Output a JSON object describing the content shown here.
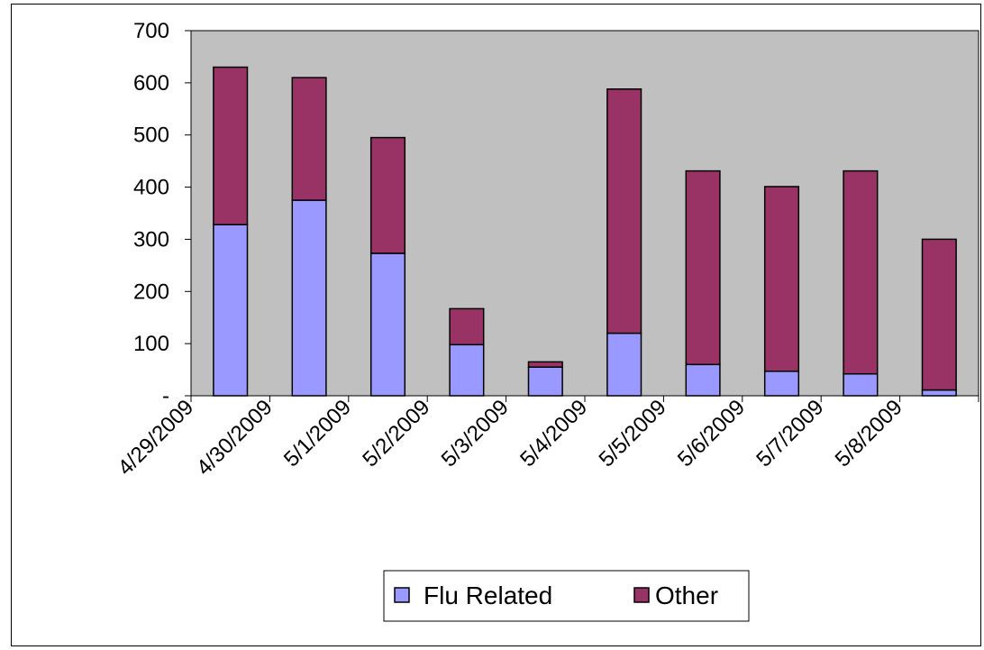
{
  "chart_data": {
    "type": "bar",
    "stacked": true,
    "categories": [
      "4/29/2009",
      "4/30/2009",
      "5/1/2009",
      "5/2/2009",
      "5/3/2009",
      "5/4/2009",
      "5/5/2009",
      "5/6/2009",
      "5/7/2009",
      "5/8/2009"
    ],
    "series": [
      {
        "name": "Flu Related",
        "values": [
          328,
          375,
          273,
          98,
          55,
          120,
          60,
          47,
          42,
          11
        ],
        "color": "#9999ff"
      },
      {
        "name": "Other",
        "values": [
          302,
          235,
          222,
          69,
          10,
          468,
          371,
          354,
          389,
          289
        ],
        "color": "#993366"
      }
    ],
    "ylim": [
      0,
      700
    ],
    "yticks": [
      0,
      100,
      200,
      300,
      400,
      500,
      600,
      700
    ],
    "ytick_labels": [
      "-",
      "100",
      "200",
      "300",
      "400",
      "500",
      "600",
      "700"
    ],
    "grid": false,
    "plot_background": "#c0c0c0",
    "legend_position": "bottom",
    "title": "",
    "xlabel": "",
    "ylabel": ""
  }
}
